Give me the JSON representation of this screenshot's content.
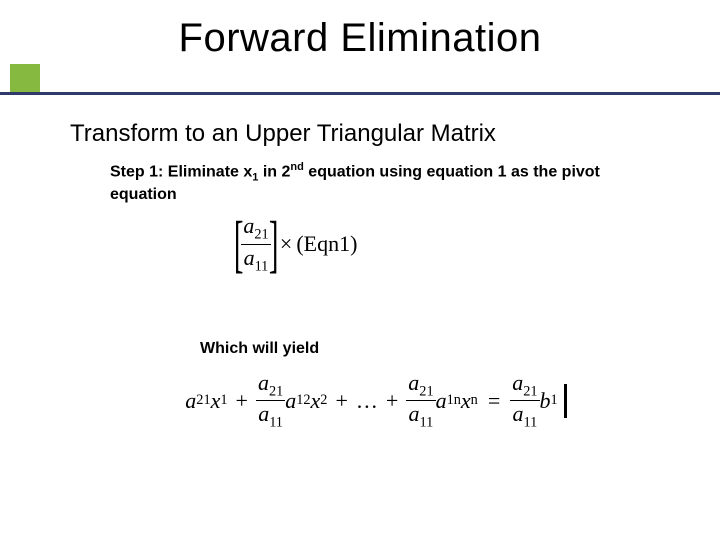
{
  "title": "Forward Elimination",
  "subtitle": "Transform to an Upper Triangular Matrix",
  "step_label_html": "Step 1: Eliminate x<sub>1</sub> in 2<sup>nd</sup> equation using equation 1 as the pivot equation",
  "which_label": "Which will yield",
  "colors": {
    "accent_green": "#86b93f",
    "rule": "#2f3a6b",
    "background": "#ffffff",
    "text": "#000000"
  },
  "layout": {
    "slide_w": 720,
    "slide_h": 540,
    "title_fontsize": 40,
    "subtitle_fontsize": 24,
    "body_fontsize": 16,
    "math_fontsize": 22
  },
  "eq1": {
    "frac_num": "a",
    "frac_num_sub": "21",
    "frac_den": "a",
    "frac_den_sub": "11",
    "times": "×",
    "rhs": "(Eqn1)",
    "lbracket": "[",
    "rbracket": "]"
  },
  "eq2": {
    "coef_frac": {
      "num": "a",
      "num_sub": "21",
      "den": "a",
      "den_sub": "11"
    },
    "terms": [
      {
        "a": "a",
        "a_sub": "21",
        "x": "x",
        "x_sub": "1"
      },
      {
        "a": "a",
        "a_sub": "12",
        "x": "x",
        "x_sub": "2"
      },
      {
        "a": "a",
        "a_sub": "1n",
        "x": "x",
        "x_sub": "n"
      }
    ],
    "dots": "…",
    "plus": "+",
    "equals": "=",
    "rhs": {
      "b": "b",
      "b_sub": "1"
    }
  }
}
